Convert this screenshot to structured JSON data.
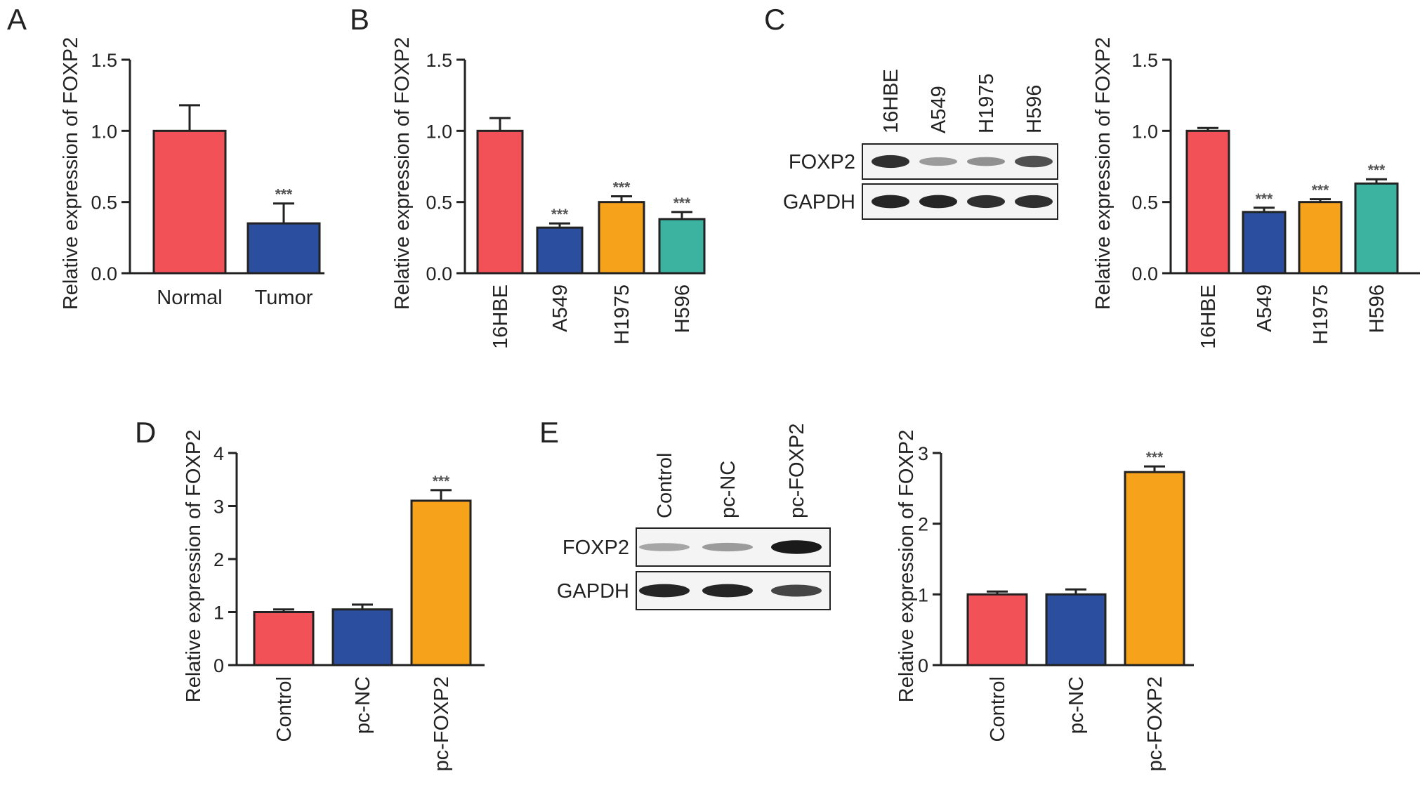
{
  "panel_labels": [
    "A",
    "B",
    "C",
    "D",
    "E"
  ],
  "colors": {
    "red": "#f25157",
    "blue": "#2b4f9e",
    "orange": "#f7a21b",
    "teal": "#3bb3a0",
    "axis": "#222222"
  },
  "blots": [
    {
      "panel": "C",
      "lanes": [
        "16HBE",
        "A549",
        "H1975",
        "H596"
      ],
      "rows": [
        {
          "label": "FOXP2",
          "intensity": [
            0.85,
            0.35,
            0.4,
            0.7
          ]
        },
        {
          "label": "GAPDH",
          "intensity": [
            0.9,
            0.9,
            0.85,
            0.85
          ]
        }
      ]
    },
    {
      "panel": "E",
      "lanes": [
        "Control",
        "pc-NC",
        "pc-FOXP2"
      ],
      "rows": [
        {
          "label": "FOXP2",
          "intensity": [
            0.3,
            0.35,
            0.95
          ]
        },
        {
          "label": "GAPDH",
          "intensity": [
            0.9,
            0.9,
            0.75
          ]
        }
      ]
    }
  ],
  "chart_data": [
    {
      "panel": "A",
      "type": "bar",
      "ylabel": "Relative expression of FOXP2",
      "categories": [
        "Normal",
        "Tumor"
      ],
      "values": [
        1.0,
        0.35
      ],
      "errors": [
        0.18,
        0.14
      ],
      "significance": [
        "",
        "***"
      ],
      "colors": [
        "red",
        "blue"
      ],
      "ylim": [
        0,
        1.5
      ],
      "yticks": [
        "0.0",
        "0.5",
        "1.0",
        "1.5"
      ]
    },
    {
      "panel": "B",
      "type": "bar",
      "ylabel": "Relative expression of FOXP2",
      "categories": [
        "16HBE",
        "A549",
        "H1975",
        "H596"
      ],
      "values": [
        1.0,
        0.32,
        0.5,
        0.38
      ],
      "errors": [
        0.09,
        0.03,
        0.04,
        0.05
      ],
      "significance": [
        "",
        "***",
        "***",
        "***"
      ],
      "colors": [
        "red",
        "blue",
        "orange",
        "teal"
      ],
      "ylim": [
        0,
        1.5
      ],
      "yticks": [
        "0.0",
        "0.5",
        "1.0",
        "1.5"
      ]
    },
    {
      "panel": "C",
      "type": "bar",
      "ylabel": "Relative expression of FOXP2",
      "categories": [
        "16HBE",
        "A549",
        "H1975",
        "H596"
      ],
      "values": [
        1.0,
        0.43,
        0.5,
        0.63
      ],
      "errors": [
        0.02,
        0.03,
        0.02,
        0.03
      ],
      "significance": [
        "",
        "***",
        "***",
        "***"
      ],
      "colors": [
        "red",
        "blue",
        "orange",
        "teal"
      ],
      "ylim": [
        0,
        1.5
      ],
      "yticks": [
        "0.0",
        "0.5",
        "1.0",
        "1.5"
      ]
    },
    {
      "panel": "D",
      "type": "bar",
      "ylabel": "Relative expression of FOXP2",
      "categories": [
        "Control",
        "pc-NC",
        "pc-FOXP2"
      ],
      "values": [
        1.0,
        1.05,
        3.1
      ],
      "errors": [
        0.05,
        0.09,
        0.2
      ],
      "significance": [
        "",
        "",
        "***"
      ],
      "colors": [
        "red",
        "blue",
        "orange"
      ],
      "ylim": [
        0,
        4
      ],
      "yticks": [
        "0",
        "1",
        "2",
        "3",
        "4"
      ]
    },
    {
      "panel": "E",
      "type": "bar",
      "ylabel": "Relative expression of FOXP2",
      "categories": [
        "Control",
        "pc-NC",
        "pc-FOXP2"
      ],
      "values": [
        1.0,
        1.0,
        2.73
      ],
      "errors": [
        0.04,
        0.07,
        0.08
      ],
      "significance": [
        "",
        "",
        "***"
      ],
      "colors": [
        "red",
        "blue",
        "orange"
      ],
      "ylim": [
        0,
        3
      ],
      "yticks": [
        "0",
        "1",
        "2",
        "3"
      ]
    }
  ]
}
